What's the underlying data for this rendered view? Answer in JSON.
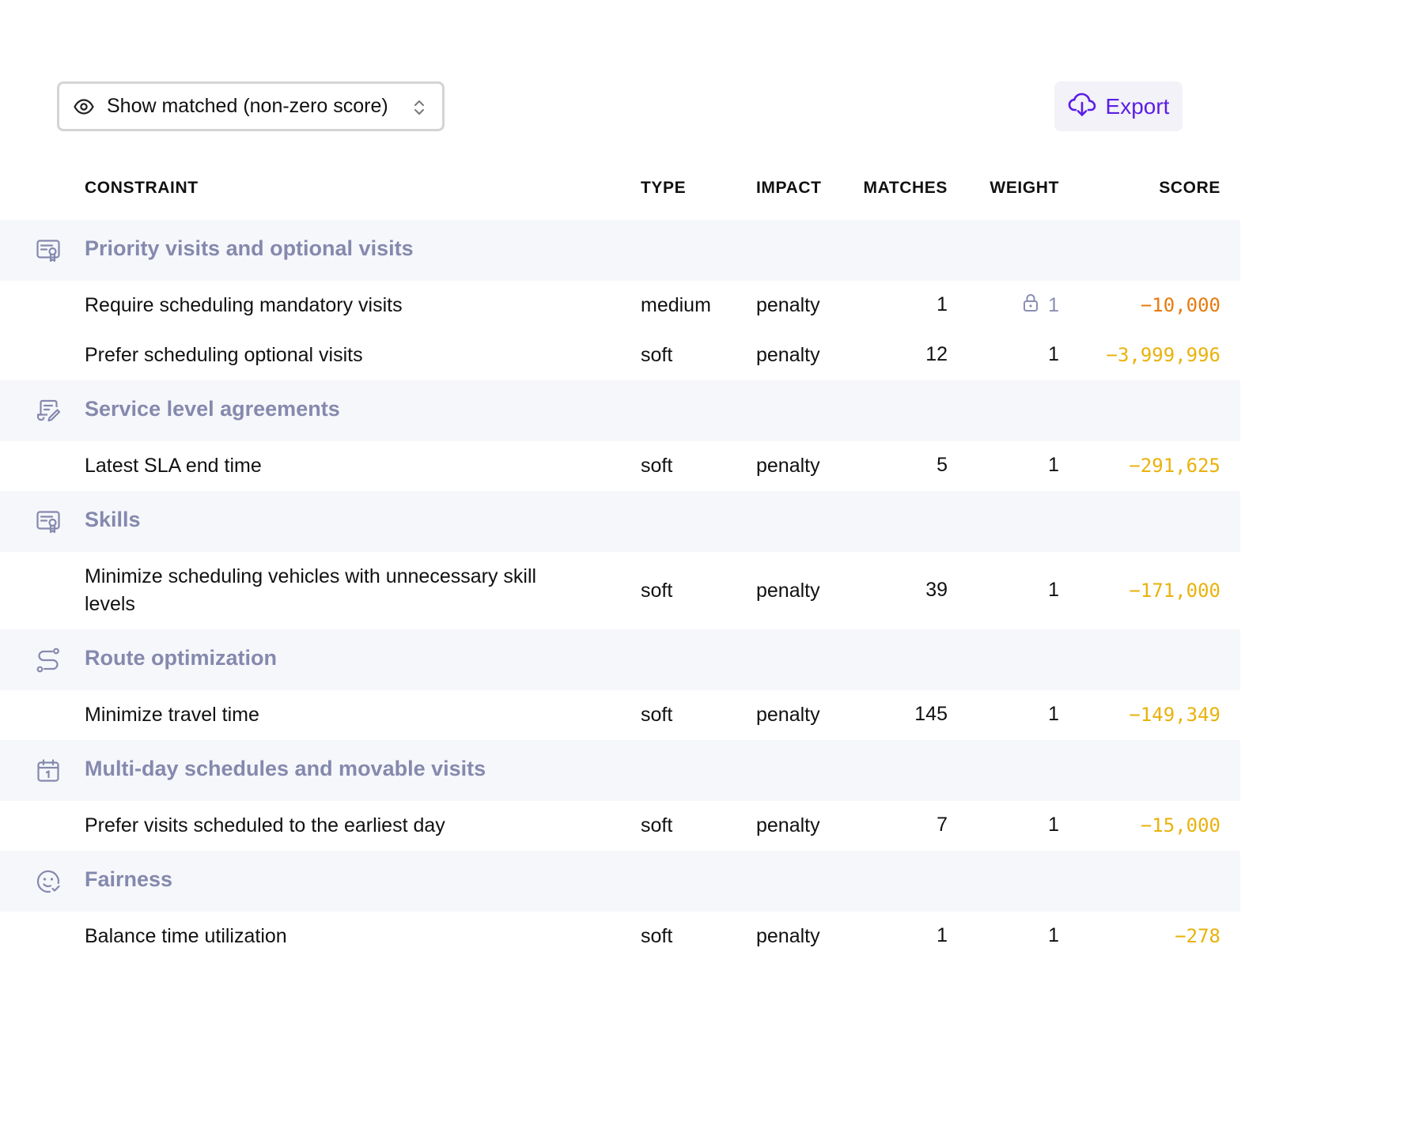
{
  "filter": {
    "label": "Show matched (non-zero score)",
    "icon": "eye-icon"
  },
  "export": {
    "label": "Export",
    "icon": "cloud-download-icon",
    "color": "#5b1ee6"
  },
  "columns": {
    "constraint": "CONSTRAINT",
    "type": "TYPE",
    "impact": "IMPACT",
    "matches": "MATCHES",
    "weight": "WEIGHT",
    "score": "SCORE"
  },
  "groups": [
    {
      "title": "Priority visits and optional visits",
      "icon": "certificate-icon",
      "rows": [
        {
          "name": "Require scheduling mandatory visits",
          "type": "medium",
          "impact": "penalty",
          "matches": "1",
          "weight": "1",
          "weight_locked": true,
          "score": "−10,000",
          "score_color": "#e87a0c"
        },
        {
          "name": "Prefer scheduling optional visits",
          "type": "soft",
          "impact": "penalty",
          "matches": "12",
          "weight": "1",
          "weight_locked": false,
          "score": "−3,999,996",
          "score_color": "#e9b20c"
        }
      ]
    },
    {
      "title": "Service level agreements",
      "icon": "contract-edit-icon",
      "rows": [
        {
          "name": "Latest SLA end time",
          "type": "soft",
          "impact": "penalty",
          "matches": "5",
          "weight": "1",
          "weight_locked": false,
          "score": "−291,625",
          "score_color": "#e9b20c"
        }
      ]
    },
    {
      "title": "Skills",
      "icon": "certificate-icon",
      "rows": [
        {
          "name": "Minimize scheduling vehicles with unnecessary skill levels",
          "type": "soft",
          "impact": "penalty",
          "matches": "39",
          "weight": "1",
          "weight_locked": false,
          "score": "−171,000",
          "score_color": "#e9b20c"
        }
      ]
    },
    {
      "title": "Route optimization",
      "icon": "route-icon",
      "rows": [
        {
          "name": "Minimize travel time",
          "type": "soft",
          "impact": "penalty",
          "matches": "145",
          "weight": "1",
          "weight_locked": false,
          "score": "−149,349",
          "score_color": "#e9b20c"
        }
      ]
    },
    {
      "title": "Multi-day schedules and movable visits",
      "icon": "calendar-icon",
      "rows": [
        {
          "name": "Prefer visits scheduled to the earliest day",
          "type": "soft",
          "impact": "penalty",
          "matches": "7",
          "weight": "1",
          "weight_locked": false,
          "score": "−15,000",
          "score_color": "#e9b20c"
        }
      ]
    },
    {
      "title": "Fairness",
      "icon": "smile-check-icon",
      "rows": [
        {
          "name": "Balance time utilization",
          "type": "soft",
          "impact": "penalty",
          "matches": "1",
          "weight": "1",
          "weight_locked": false,
          "score": "−278",
          "score_color": "#e9b20c"
        }
      ]
    }
  ]
}
